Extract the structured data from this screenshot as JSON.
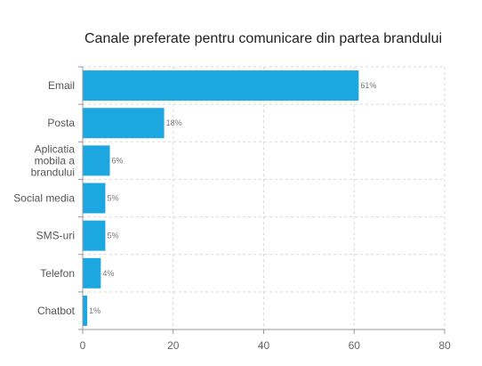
{
  "chart_data": {
    "type": "bar",
    "orientation": "horizontal",
    "title": "Canale preferate pentru comunicare din partea brandului",
    "categories": [
      [
        "Email"
      ],
      [
        "Posta"
      ],
      [
        "Aplicatia",
        "mobila a",
        "brandului"
      ],
      [
        "Social media"
      ],
      [
        "SMS-uri"
      ],
      [
        "Telefon"
      ],
      [
        "Chatbot"
      ]
    ],
    "values": [
      61,
      18,
      6,
      5,
      5,
      4,
      1
    ],
    "data_labels": [
      "61%",
      "18%",
      "6%",
      "5%",
      "5%",
      "4%",
      "1%"
    ],
    "xlim": [
      0,
      80
    ],
    "xticks": [
      0,
      20,
      40,
      60,
      80
    ],
    "grid": true,
    "bar_color": "#1ca7e0"
  }
}
